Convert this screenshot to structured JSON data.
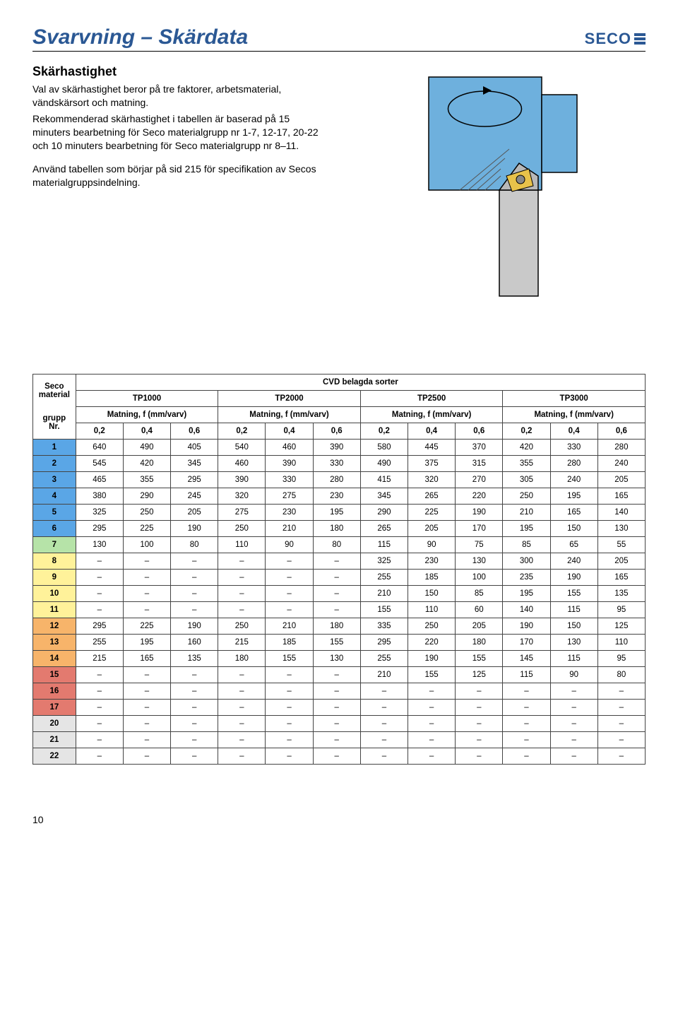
{
  "page": {
    "title": "Svarvning – Skärdata",
    "logo_text": "SECO",
    "footer": "10"
  },
  "text": {
    "h1": "Skärhastighet",
    "p1": "Val av skärhastighet beror på tre faktorer, arbetsmaterial, vändskärsort och matning.",
    "p2": "Rekommenderad skärhastighet i tabellen är baserad på 15 minuters bearbetning för Seco materialgrupp nr 1-7, 12-17, 20-22 och 10 minuters bearbetning för Seco materialgrupp nr 8–11.",
    "p3": "Använd tabellen som börjar på sid 215 för specifikation av Secos materialgruppsindelning."
  },
  "table": {
    "left_header_1": "Seco",
    "left_header_2": "material",
    "left_header_3": "grupp",
    "left_header_4": "Nr.",
    "over_header": "CVD belagda sorter",
    "grades": [
      "TP1000",
      "TP2000",
      "TP2500",
      "TP3000"
    ],
    "feed_header": "Matning, f (mm/varv)",
    "feed_values": [
      "0,2",
      "0,4",
      "0,6"
    ],
    "colors": {
      "blue": "#5aa6e6",
      "green": "#b6e3a8",
      "yellow": "#fff29a",
      "orange": "#f7b46a",
      "red": "#e37a6f",
      "grey": "#e5e5e5"
    },
    "rows": [
      {
        "id": "1",
        "color": "blue",
        "v": [
          "640",
          "490",
          "405",
          "540",
          "460",
          "390",
          "580",
          "445",
          "370",
          "420",
          "330",
          "280"
        ]
      },
      {
        "id": "2",
        "color": "blue",
        "v": [
          "545",
          "420",
          "345",
          "460",
          "390",
          "330",
          "490",
          "375",
          "315",
          "355",
          "280",
          "240"
        ]
      },
      {
        "id": "3",
        "color": "blue",
        "v": [
          "465",
          "355",
          "295",
          "390",
          "330",
          "280",
          "415",
          "320",
          "270",
          "305",
          "240",
          "205"
        ]
      },
      {
        "id": "4",
        "color": "blue",
        "v": [
          "380",
          "290",
          "245",
          "320",
          "275",
          "230",
          "345",
          "265",
          "220",
          "250",
          "195",
          "165"
        ]
      },
      {
        "id": "5",
        "color": "blue",
        "v": [
          "325",
          "250",
          "205",
          "275",
          "230",
          "195",
          "290",
          "225",
          "190",
          "210",
          "165",
          "140"
        ]
      },
      {
        "id": "6",
        "color": "blue",
        "v": [
          "295",
          "225",
          "190",
          "250",
          "210",
          "180",
          "265",
          "205",
          "170",
          "195",
          "150",
          "130"
        ]
      },
      {
        "id": "7",
        "color": "green",
        "v": [
          "130",
          "100",
          "80",
          "110",
          "90",
          "80",
          "115",
          "90",
          "75",
          "85",
          "65",
          "55"
        ]
      },
      {
        "id": "8",
        "color": "yellow",
        "v": [
          "–",
          "–",
          "–",
          "–",
          "–",
          "–",
          "325",
          "230",
          "130",
          "300",
          "240",
          "205"
        ]
      },
      {
        "id": "9",
        "color": "yellow",
        "v": [
          "–",
          "–",
          "–",
          "–",
          "–",
          "–",
          "255",
          "185",
          "100",
          "235",
          "190",
          "165"
        ]
      },
      {
        "id": "10",
        "color": "yellow",
        "v": [
          "–",
          "–",
          "–",
          "–",
          "–",
          "–",
          "210",
          "150",
          "85",
          "195",
          "155",
          "135"
        ]
      },
      {
        "id": "11",
        "color": "yellow",
        "v": [
          "–",
          "–",
          "–",
          "–",
          "–",
          "–",
          "155",
          "110",
          "60",
          "140",
          "115",
          "95"
        ]
      },
      {
        "id": "12",
        "color": "orange",
        "v": [
          "295",
          "225",
          "190",
          "250",
          "210",
          "180",
          "335",
          "250",
          "205",
          "190",
          "150",
          "125"
        ]
      },
      {
        "id": "13",
        "color": "orange",
        "v": [
          "255",
          "195",
          "160",
          "215",
          "185",
          "155",
          "295",
          "220",
          "180",
          "170",
          "130",
          "110"
        ]
      },
      {
        "id": "14",
        "color": "orange",
        "v": [
          "215",
          "165",
          "135",
          "180",
          "155",
          "130",
          "255",
          "190",
          "155",
          "145",
          "115",
          "95"
        ]
      },
      {
        "id": "15",
        "color": "red",
        "v": [
          "–",
          "–",
          "–",
          "–",
          "–",
          "–",
          "210",
          "155",
          "125",
          "115",
          "90",
          "80"
        ]
      },
      {
        "id": "16",
        "color": "red",
        "v": [
          "–",
          "–",
          "–",
          "–",
          "–",
          "–",
          "–",
          "–",
          "–",
          "–",
          "–",
          "–"
        ]
      },
      {
        "id": "17",
        "color": "red",
        "v": [
          "–",
          "–",
          "–",
          "–",
          "–",
          "–",
          "–",
          "–",
          "–",
          "–",
          "–",
          "–"
        ]
      },
      {
        "id": "20",
        "color": "grey",
        "v": [
          "–",
          "–",
          "–",
          "–",
          "–",
          "–",
          "–",
          "–",
          "–",
          "–",
          "–",
          "–"
        ]
      },
      {
        "id": "21",
        "color": "grey",
        "v": [
          "–",
          "–",
          "–",
          "–",
          "–",
          "–",
          "–",
          "–",
          "–",
          "–",
          "–",
          "–"
        ]
      },
      {
        "id": "22",
        "color": "grey",
        "v": [
          "–",
          "–",
          "–",
          "–",
          "–",
          "–",
          "–",
          "–",
          "–",
          "–",
          "–",
          "–"
        ]
      }
    ]
  }
}
